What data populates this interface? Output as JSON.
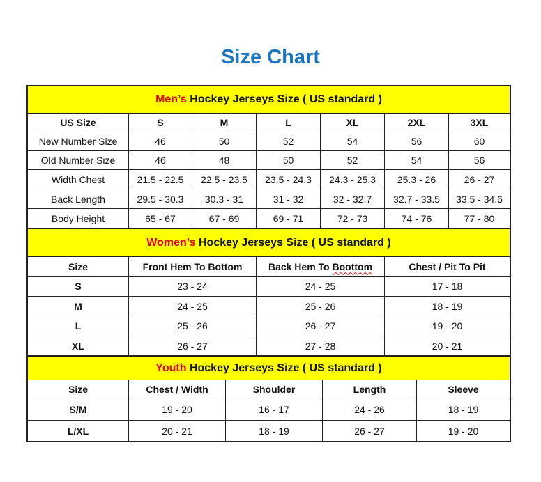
{
  "title": "Size Chart",
  "colors": {
    "title": "#1b74c0",
    "banner": "#ffff00",
    "highlight": "#e00000"
  },
  "men": {
    "banner_highlight": "Men’s",
    "banner_rest": " Hockey Jerseys Size ( US standard )",
    "headers": [
      "US Size",
      "S",
      "M",
      "L",
      "XL",
      "2XL",
      "3XL"
    ],
    "rows": [
      [
        "New Number Size",
        "46",
        "50",
        "52",
        "54",
        "56",
        "60"
      ],
      [
        "Old Number Size",
        "46",
        "48",
        "50",
        "52",
        "54",
        "56"
      ],
      [
        "Width Chest",
        "21.5 - 22.5",
        "22.5 - 23.5",
        "23.5 - 24.3",
        "24.3 - 25.3",
        "25.3 - 26",
        "26 - 27"
      ],
      [
        "Back Length",
        "29.5 - 30.3",
        "30.3 - 31",
        "31 - 32",
        "32 - 32.7",
        "32.7 - 33.5",
        "33.5 - 34.6"
      ],
      [
        "Body Height",
        "65 - 67",
        "67 - 69",
        "69 - 71",
        "72 - 73",
        "74 - 76",
        "77 - 80"
      ]
    ]
  },
  "women": {
    "banner_highlight": "Women’s",
    "banner_rest": " Hockey Jerseys Size ( US standard )",
    "headers": [
      "Size",
      "Front Hem To Bottom",
      "Back Hem To Boottom",
      "Chest / Pit To Pit"
    ],
    "rows": [
      [
        "S",
        "23 - 24",
        "24 - 25",
        "17 - 18"
      ],
      [
        "M",
        "24 - 25",
        "25 - 26",
        "18 - 19"
      ],
      [
        "L",
        "25 - 26",
        "26 - 27",
        "19 - 20"
      ],
      [
        "XL",
        "26 - 27",
        "27 - 28",
        "20 - 21"
      ]
    ]
  },
  "youth": {
    "banner_highlight": "Youth",
    "banner_rest": " Hockey Jerseys Size ( US standard )",
    "headers": [
      "Size",
      "Chest / Width",
      "Shoulder",
      "Length",
      "Sleeve"
    ],
    "rows": [
      [
        "S/M",
        "19 - 20",
        "16 - 17",
        "24 - 26",
        "18 - 19"
      ],
      [
        "L/XL",
        "20 - 21",
        "18 - 19",
        "26 - 27",
        "19 - 20"
      ]
    ]
  }
}
